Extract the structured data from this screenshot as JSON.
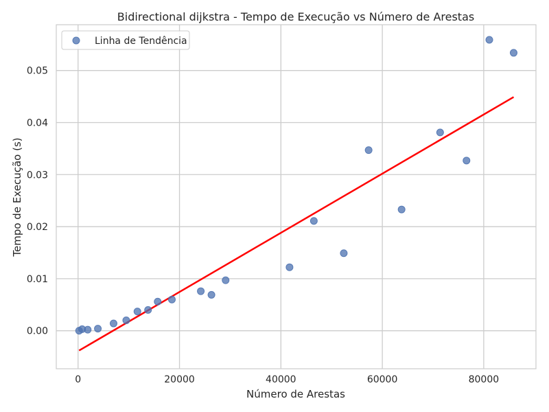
{
  "chart_data": {
    "type": "scatter",
    "title": "Bidirectional dijkstra - Tempo de Execução vs Número de Arestas",
    "xlabel": "Número de Arestas",
    "ylabel": "Tempo de Execução (s)",
    "xlim": [
      -4300,
      90300
    ],
    "ylim": [
      -0.0073,
      0.0588
    ],
    "x_ticks": [
      0,
      20000,
      40000,
      60000,
      80000
    ],
    "y_ticks": [
      0.0,
      0.01,
      0.02,
      0.03,
      0.04,
      0.05
    ],
    "x_tick_labels": [
      "0",
      "20000",
      "40000",
      "60000",
      "80000"
    ],
    "y_tick_labels": [
      "0.00",
      "0.01",
      "0.02",
      "0.03",
      "0.04",
      "0.05"
    ],
    "grid": true,
    "legend": {
      "position": "top-left",
      "entries": [
        "Linha de Tendência"
      ]
    },
    "series": [
      {
        "name": "Linha de Tendência",
        "kind": "scatter",
        "color": "#4c72b0",
        "points": [
          {
            "x": 200,
            "y": 0.0
          },
          {
            "x": 800,
            "y": 0.0003
          },
          {
            "x": 1900,
            "y": 0.0002
          },
          {
            "x": 3900,
            "y": 0.0004
          },
          {
            "x": 7000,
            "y": 0.0014
          },
          {
            "x": 9500,
            "y": 0.002
          },
          {
            "x": 11700,
            "y": 0.0037
          },
          {
            "x": 13800,
            "y": 0.004
          },
          {
            "x": 15700,
            "y": 0.0056
          },
          {
            "x": 18500,
            "y": 0.006
          },
          {
            "x": 24200,
            "y": 0.0076
          },
          {
            "x": 26300,
            "y": 0.0069
          },
          {
            "x": 29100,
            "y": 0.0097
          },
          {
            "x": 41700,
            "y": 0.0122
          },
          {
            "x": 46500,
            "y": 0.0211
          },
          {
            "x": 52400,
            "y": 0.0149
          },
          {
            "x": 57300,
            "y": 0.0347
          },
          {
            "x": 63800,
            "y": 0.0233
          },
          {
            "x": 71400,
            "y": 0.0381
          },
          {
            "x": 76600,
            "y": 0.0327
          },
          {
            "x": 81100,
            "y": 0.0559
          },
          {
            "x": 85900,
            "y": 0.0534
          }
        ]
      },
      {
        "kind": "line",
        "color": "#ff0000",
        "points": [
          {
            "x": 200,
            "y": -0.0038
          },
          {
            "x": 85900,
            "y": 0.0449
          }
        ]
      }
    ]
  }
}
